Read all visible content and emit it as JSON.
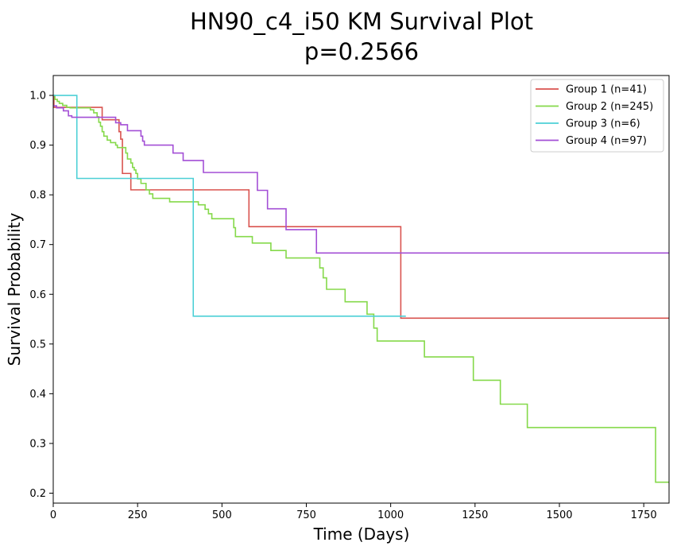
{
  "chart_data": {
    "type": "line",
    "title": "HN90_c4_i50 KM Survival Plot",
    "subtitle": "p=0.2566",
    "xlabel": "Time (Days)",
    "ylabel": "Survival Probability",
    "xlim": [
      0,
      1825
    ],
    "ylim": [
      0.18,
      1.04
    ],
    "xticks": [
      0,
      250,
      500,
      750,
      1000,
      1250,
      1500,
      1750
    ],
    "yticks": [
      0.2,
      0.3,
      0.4,
      0.5,
      0.6,
      0.7,
      0.8,
      0.9,
      1.0
    ],
    "xtick_labels": [
      "0",
      "250",
      "500",
      "750",
      "1000",
      "1250",
      "1500",
      "1750"
    ],
    "ytick_labels": [
      "0.2",
      "0.3",
      "0.4",
      "0.5",
      "0.6",
      "0.7",
      "0.8",
      "0.9",
      "1.0"
    ],
    "grid": false,
    "legend_position": "top-right",
    "series": [
      {
        "name": "Group 1 (n=41)",
        "color": "#d9534f",
        "steps": [
          [
            0,
            1.0
          ],
          [
            2,
            0.976
          ],
          [
            30,
            0.976
          ],
          [
            50,
            0.976
          ],
          [
            145,
            0.951
          ],
          [
            195,
            0.927
          ],
          [
            200,
            0.912
          ],
          [
            205,
            0.843
          ],
          [
            230,
            0.81
          ],
          [
            580,
            0.736
          ],
          [
            1030,
            0.552
          ],
          [
            1825,
            0.552
          ]
        ]
      },
      {
        "name": "Group 2 (n=245)",
        "color": "#85d94a",
        "steps": [
          [
            0,
            1.0
          ],
          [
            5,
            0.992
          ],
          [
            12,
            0.988
          ],
          [
            18,
            0.984
          ],
          [
            28,
            0.98
          ],
          [
            40,
            0.976
          ],
          [
            50,
            0.975
          ],
          [
            110,
            0.971
          ],
          [
            120,
            0.965
          ],
          [
            130,
            0.957
          ],
          [
            135,
            0.946
          ],
          [
            140,
            0.938
          ],
          [
            145,
            0.927
          ],
          [
            150,
            0.918
          ],
          [
            160,
            0.91
          ],
          [
            170,
            0.905
          ],
          [
            185,
            0.9
          ],
          [
            190,
            0.895
          ],
          [
            215,
            0.884
          ],
          [
            220,
            0.872
          ],
          [
            230,
            0.864
          ],
          [
            235,
            0.855
          ],
          [
            240,
            0.85
          ],
          [
            245,
            0.843
          ],
          [
            250,
            0.832
          ],
          [
            260,
            0.823
          ],
          [
            275,
            0.81
          ],
          [
            285,
            0.802
          ],
          [
            295,
            0.793
          ],
          [
            345,
            0.786
          ],
          [
            430,
            0.78
          ],
          [
            450,
            0.771
          ],
          [
            460,
            0.762
          ],
          [
            470,
            0.752
          ],
          [
            535,
            0.734
          ],
          [
            540,
            0.716
          ],
          [
            590,
            0.703
          ],
          [
            645,
            0.688
          ],
          [
            690,
            0.673
          ],
          [
            790,
            0.653
          ],
          [
            800,
            0.633
          ],
          [
            810,
            0.61
          ],
          [
            865,
            0.585
          ],
          [
            930,
            0.56
          ],
          [
            950,
            0.532
          ],
          [
            960,
            0.506
          ],
          [
            1100,
            0.474
          ],
          [
            1245,
            0.427
          ],
          [
            1325,
            0.379
          ],
          [
            1405,
            0.332
          ],
          [
            1785,
            0.222
          ],
          [
            1825,
            0.222
          ]
        ]
      },
      {
        "name": "Group 3 (n=6)",
        "color": "#4dd0d6",
        "steps": [
          [
            0,
            1.0
          ],
          [
            70,
            0.833
          ],
          [
            415,
            0.556
          ],
          [
            1045,
            0.556
          ]
        ]
      },
      {
        "name": "Group 4 (n=97)",
        "color": "#a34fd6",
        "steps": [
          [
            0,
            0.979
          ],
          [
            10,
            0.975
          ],
          [
            30,
            0.969
          ],
          [
            45,
            0.959
          ],
          [
            55,
            0.956
          ],
          [
            185,
            0.945
          ],
          [
            200,
            0.941
          ],
          [
            220,
            0.929
          ],
          [
            260,
            0.918
          ],
          [
            265,
            0.908
          ],
          [
            270,
            0.9
          ],
          [
            355,
            0.884
          ],
          [
            385,
            0.869
          ],
          [
            445,
            0.845
          ],
          [
            605,
            0.809
          ],
          [
            635,
            0.772
          ],
          [
            690,
            0.73
          ],
          [
            780,
            0.683
          ],
          [
            1825,
            0.683
          ]
        ]
      }
    ]
  }
}
